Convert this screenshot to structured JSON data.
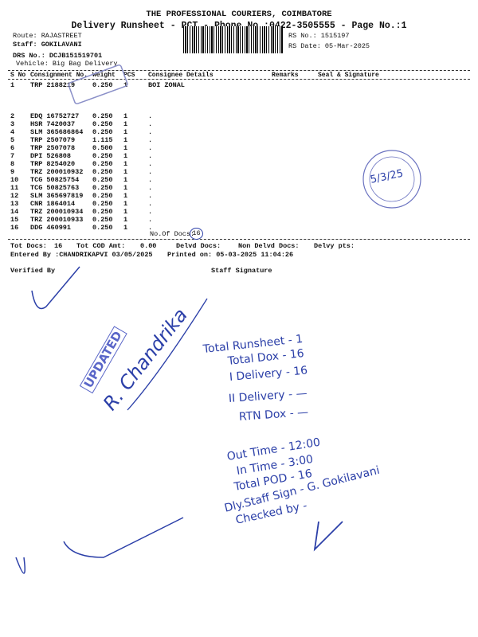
{
  "header": {
    "company": "THE PROFESSIONAL COURIERS, COIMBATORE",
    "title": "Delivery Runsheet - PCT - Phone No.:0422-3505555 - Page No.:1"
  },
  "info": {
    "route": "Route: RAJASTREET",
    "staff": "Staff: GOKILAVANI",
    "drs": "DRS No.: DCJB151519701",
    "vehicle": "Vehicle: Big Bag Delivery",
    "rs_no": "RS No.: 1515197",
    "rs_date": "RS Date: 05-Mar-2025"
  },
  "table": {
    "columns": [
      "S No",
      "Consignment No.",
      "Weight",
      "PCS",
      "Consignee Details",
      "Remarks",
      "Seal & Signature"
    ],
    "rows": [
      [
        "1",
        "TRP 2188219",
        "0.250",
        "1",
        "BOI  ZONAL"
      ],
      [
        "2",
        "EDQ 16752727",
        "0.250",
        "1",
        "."
      ],
      [
        "3",
        "HSR 7420037",
        "0.250",
        "1",
        "."
      ],
      [
        "4",
        "SLM 365686864",
        "0.250",
        "1",
        "."
      ],
      [
        "5",
        "TRP 2507079",
        "1.115",
        "1",
        "."
      ],
      [
        "6",
        "TRP 2507078",
        "0.500",
        "1",
        "."
      ],
      [
        "7",
        "DPI 526808",
        "0.250",
        "1",
        "."
      ],
      [
        "8",
        "TRP 8254020",
        "0.250",
        "1",
        "."
      ],
      [
        "9",
        "TRZ 200010932",
        "0.250",
        "1",
        "."
      ],
      [
        "10",
        "TCG 50825754",
        "0.250",
        "1",
        "."
      ],
      [
        "11",
        "TCG 50825763",
        "0.250",
        "1",
        "."
      ],
      [
        "12",
        "SLM 365697819",
        "0.250",
        "1",
        "."
      ],
      [
        "13",
        "CNR 1864014",
        "0.250",
        "1",
        "."
      ],
      [
        "14",
        "TRZ 200010934",
        "0.250",
        "1",
        "."
      ],
      [
        "15",
        "TRZ 200010933",
        "0.250",
        "1",
        "."
      ],
      [
        "16",
        "DDG 460991",
        "0.250",
        "1",
        "."
      ]
    ],
    "doc_count_label": "No.Of Docs:",
    "doc_count": "16"
  },
  "totals": {
    "tot_docs_label": "Tot Docs:",
    "tot_docs": "16",
    "cod_label": "Tot COD Amt:",
    "cod": "0.00",
    "delvd": "Delvd Docs:",
    "non_delvd": "Non Delvd Docs:",
    "delvy_pts": "Delvy pts:",
    "entered_by": "Entered By :CHANDRIKAPVI 03/05/2025",
    "printed_on": "Printed on: 05-03-2025 11:04:26"
  },
  "signatures": {
    "verified_by": "Verified By",
    "staff_signature": "Staff Signature"
  },
  "handwritten": {
    "stamp": "UPDATED",
    "name": "R. Chandrika",
    "date_seal": "5/3/25",
    "summary": [
      "Total Runsheet - 1",
      "Total Dox - 16",
      "I Delivery - 16",
      "II Delivery - —",
      "RTN Dox - —",
      "Out Time - 12:00",
      "In Time - 3:00",
      "Total POD - 16",
      "Dly.Staff Sign - G. Gokilavani",
      "Checked by -"
    ]
  }
}
